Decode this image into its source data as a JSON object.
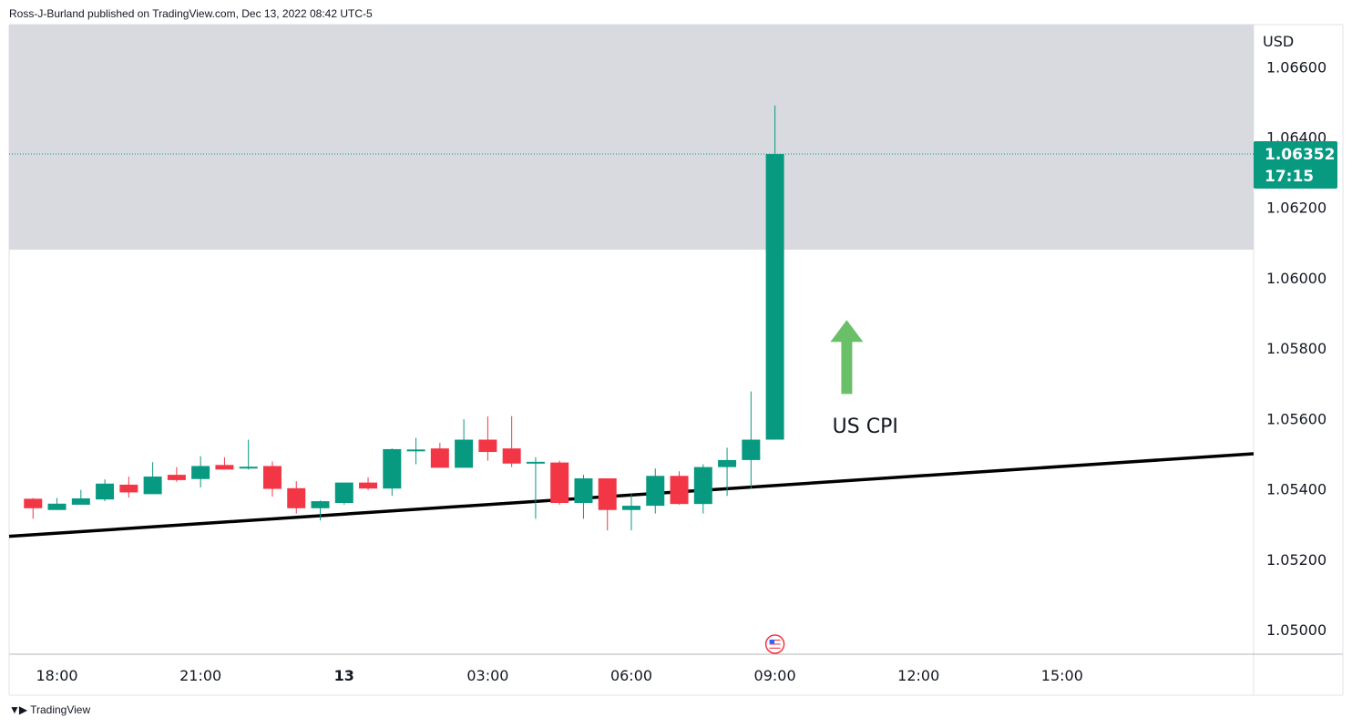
{
  "header": {
    "attribution": "Ross-J-Burland published on TradingView.com, Dec 13, 2022 08:42 UTC-5"
  },
  "footer": {
    "logo_text": "TradingView",
    "logo_icon": "tradingview-logo-icon"
  },
  "chart_data": {
    "type": "candlestick",
    "currency": "USD",
    "y_range": [
      1.0493,
      1.0672
    ],
    "y_ticks": [
      {
        "value": 1.066,
        "label": "1.06600"
      },
      {
        "value": 1.064,
        "label": "1.06400"
      },
      {
        "value": 1.062,
        "label": "1.06200"
      },
      {
        "value": 1.06,
        "label": "1.06000"
      },
      {
        "value": 1.058,
        "label": "1.05800"
      },
      {
        "value": 1.056,
        "label": "1.05600"
      },
      {
        "value": 1.054,
        "label": "1.05400"
      },
      {
        "value": 1.052,
        "label": "1.05200"
      },
      {
        "value": 1.05,
        "label": "1.05000"
      }
    ],
    "x_range": [
      17.0,
      26.5
    ],
    "x_ticks": [
      {
        "hour": 18,
        "label": "18:00",
        "bold": false
      },
      {
        "hour": 21,
        "label": "21:00",
        "bold": false
      },
      {
        "hour": 24,
        "label": "13",
        "bold": true
      },
      {
        "hour": 27,
        "label": "03:00",
        "bold": false
      },
      {
        "hour": 30,
        "label": "06:00",
        "bold": false
      },
      {
        "hour": 33,
        "label": "09:00",
        "bold": false
      },
      {
        "hour": 36,
        "label": "12:00",
        "bold": false
      },
      {
        "hour": 39,
        "label": "15:00",
        "bold": false
      }
    ],
    "candles": [
      {
        "t": 17.5,
        "o": 1.05372,
        "h": 1.05374,
        "l": 1.05315,
        "c": 1.05345
      },
      {
        "t": 18.0,
        "o": 1.0534,
        "h": 1.05374,
        "l": 1.0534,
        "c": 1.05358
      },
      {
        "t": 18.5,
        "o": 1.05355,
        "h": 1.05397,
        "l": 1.05355,
        "c": 1.05373
      },
      {
        "t": 19.0,
        "o": 1.0537,
        "h": 1.05427,
        "l": 1.05365,
        "c": 1.05415
      },
      {
        "t": 19.5,
        "o": 1.05412,
        "h": 1.05435,
        "l": 1.05375,
        "c": 1.0539
      },
      {
        "t": 20.0,
        "o": 1.05385,
        "h": 1.05476,
        "l": 1.05385,
        "c": 1.05435
      },
      {
        "t": 20.5,
        "o": 1.0544,
        "h": 1.05462,
        "l": 1.0542,
        "c": 1.05425
      },
      {
        "t": 21.0,
        "o": 1.05428,
        "h": 1.05493,
        "l": 1.05404,
        "c": 1.05465
      },
      {
        "t": 21.5,
        "o": 1.05468,
        "h": 1.0549,
        "l": 1.0546,
        "c": 1.05455
      },
      {
        "t": 22.0,
        "o": 1.05458,
        "h": 1.0554,
        "l": 1.05455,
        "c": 1.05463
      },
      {
        "t": 22.5,
        "o": 1.05465,
        "h": 1.05478,
        "l": 1.05378,
        "c": 1.054
      },
      {
        "t": 23.0,
        "o": 1.05402,
        "h": 1.05422,
        "l": 1.0533,
        "c": 1.05345
      },
      {
        "t": 23.5,
        "o": 1.05345,
        "h": 1.05367,
        "l": 1.0531,
        "c": 1.05365
      },
      {
        "t": 24.0,
        "o": 1.0536,
        "h": 1.05418,
        "l": 1.05355,
        "c": 1.05418
      },
      {
        "t": 24.5,
        "o": 1.05418,
        "h": 1.05433,
        "l": 1.05397,
        "c": 1.05401
      },
      {
        "t": 25.0,
        "o": 1.05401,
        "h": 1.05515,
        "l": 1.0538,
        "c": 1.05513
      },
      {
        "t": 25.5,
        "o": 1.0551,
        "h": 1.05545,
        "l": 1.0547,
        "c": 1.05512
      },
      {
        "t": 26.0,
        "o": 1.05515,
        "h": 1.05531,
        "l": 1.0546,
        "c": 1.0546
      },
      {
        "t": 26.5,
        "o": 1.0546,
        "h": 1.05598,
        "l": 1.0546,
        "c": 1.0554
      },
      {
        "t": 27.0,
        "o": 1.0554,
        "h": 1.05606,
        "l": 1.0548,
        "c": 1.05505
      },
      {
        "t": 27.5,
        "o": 1.05515,
        "h": 1.05607,
        "l": 1.05462,
        "c": 1.05472
      },
      {
        "t": 28.0,
        "o": 1.05475,
        "h": 1.0549,
        "l": 1.05315,
        "c": 1.05477
      },
      {
        "t": 28.5,
        "o": 1.05475,
        "h": 1.0548,
        "l": 1.05355,
        "c": 1.0536
      },
      {
        "t": 29.0,
        "o": 1.0536,
        "h": 1.0544,
        "l": 1.05315,
        "c": 1.0543
      },
      {
        "t": 29.5,
        "o": 1.0543,
        "h": 1.0543,
        "l": 1.05282,
        "c": 1.0534
      },
      {
        "t": 30.0,
        "o": 1.0534,
        "h": 1.05385,
        "l": 1.05282,
        "c": 1.05352
      },
      {
        "t": 30.5,
        "o": 1.05352,
        "h": 1.05458,
        "l": 1.0533,
        "c": 1.05437
      },
      {
        "t": 31.0,
        "o": 1.05437,
        "h": 1.0545,
        "l": 1.05355,
        "c": 1.05357
      },
      {
        "t": 31.5,
        "o": 1.05357,
        "h": 1.0547,
        "l": 1.0533,
        "c": 1.05462
      },
      {
        "t": 32.0,
        "o": 1.05462,
        "h": 1.05517,
        "l": 1.0538,
        "c": 1.05482
      },
      {
        "t": 32.5,
        "o": 1.05482,
        "h": 1.05677,
        "l": 1.054,
        "c": 1.0554
      },
      {
        "t": 33.0,
        "o": 1.0554,
        "h": 1.0649,
        "l": 1.0554,
        "c": 1.06352
      }
    ],
    "trendline": {
      "from": {
        "t": 17.0,
        "price": 1.05265
      },
      "to": {
        "t": 43.0,
        "price": 1.055
      }
    },
    "resistance_zone": {
      "from_price": 1.0608,
      "to_price": 1.0672
    },
    "last_price": {
      "value": 1.06352,
      "label": "1.06352",
      "countdown": "17:15"
    },
    "annotation": {
      "text": "US CPI",
      "t": 34.2,
      "price": 1.0558
    },
    "arrow": {
      "t": 34.5,
      "from_price": 1.0567,
      "to_price": 1.0588
    },
    "event_marker": {
      "t": 33.0,
      "icon": "us-flag-event-icon"
    },
    "colors": {
      "bull": "#089981",
      "bear": "#f23645",
      "zone": "#d9dadf",
      "trendline": "#000000",
      "arrow": "#6abf69",
      "price_label_bg": "#089981"
    }
  }
}
